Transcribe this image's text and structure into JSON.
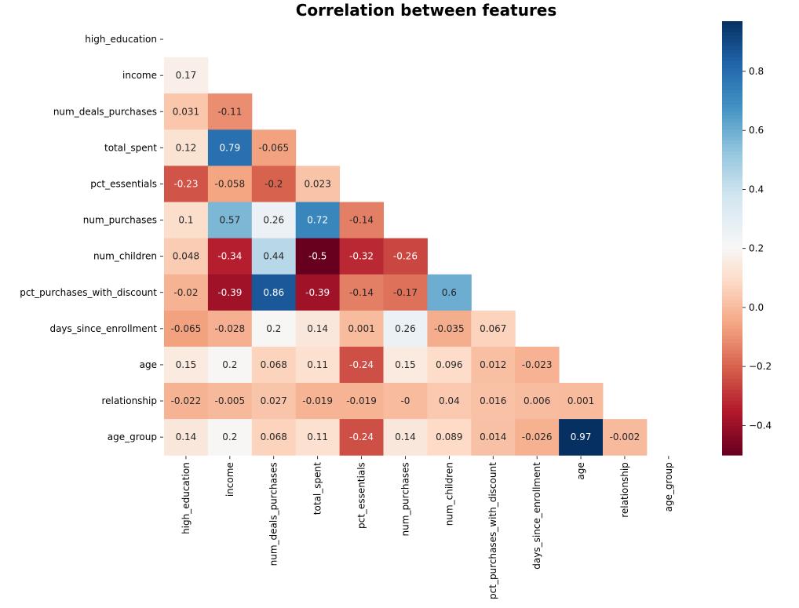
{
  "chart_data": {
    "type": "heatmap",
    "title": "Correlation between features",
    "labels": [
      "high_education",
      "income",
      "num_deals_purchases",
      "total_spent",
      "pct_essentials",
      "num_purchases",
      "num_children",
      "pct_purchases_with_discount",
      "days_since_enrollment",
      "age",
      "relationship",
      "age_group"
    ],
    "mask": "upper-triangle-including-diagonal",
    "values": [
      [],
      [
        0.17
      ],
      [
        0.031,
        -0.11
      ],
      [
        0.12,
        0.79,
        -0.065
      ],
      [
        -0.23,
        -0.058,
        -0.2,
        0.023
      ],
      [
        0.1,
        0.57,
        0.26,
        0.72,
        -0.14
      ],
      [
        0.048,
        -0.34,
        0.44,
        -0.5,
        -0.32,
        -0.26
      ],
      [
        -0.02,
        -0.39,
        0.86,
        -0.39,
        -0.14,
        -0.17,
        0.6
      ],
      [
        -0.065,
        -0.028,
        0.2,
        0.14,
        0.001,
        0.26,
        -0.035,
        0.067
      ],
      [
        0.15,
        0.2,
        0.068,
        0.11,
        -0.24,
        0.15,
        0.096,
        0.012,
        -0.023
      ],
      [
        -0.022,
        -0.005,
        0.027,
        -0.019,
        -0.019,
        "-0",
        0.04,
        0.016,
        0.006,
        0.001
      ],
      [
        0.14,
        0.2,
        0.068,
        0.11,
        -0.24,
        0.14,
        0.089,
        0.014,
        -0.026,
        0.97,
        -0.002
      ]
    ],
    "colormap": "RdBu",
    "vmin": -0.5,
    "vmax": 0.97,
    "colorbar_ticks": [
      "−0.4",
      "−0.2",
      "0.0",
      "0.2",
      "0.4",
      "0.6",
      "0.8"
    ],
    "colorbar_tick_values": [
      -0.4,
      -0.2,
      0.0,
      0.2,
      0.4,
      0.6,
      0.8
    ]
  }
}
